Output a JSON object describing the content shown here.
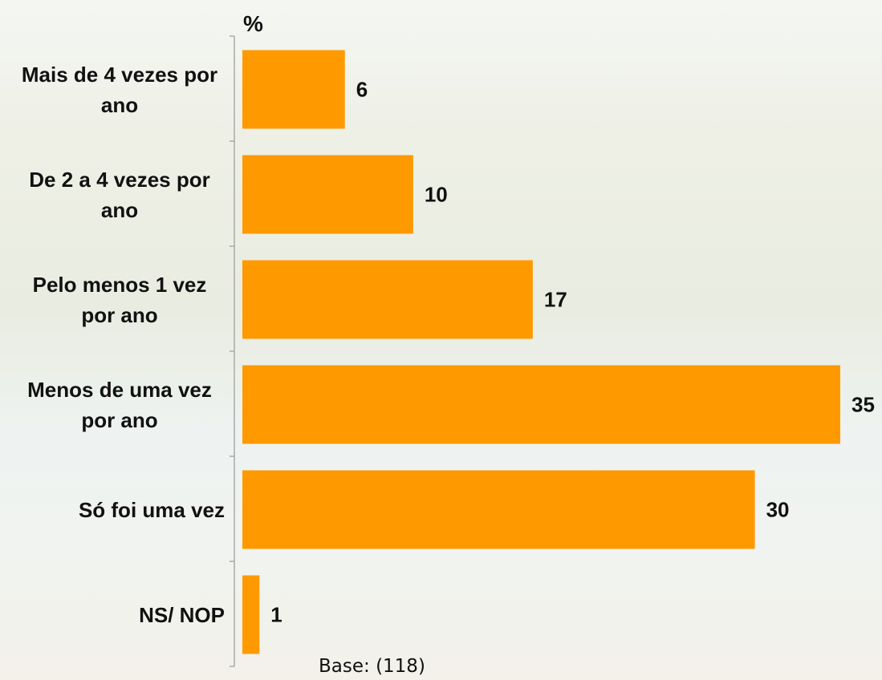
{
  "chart_data": {
    "type": "bar",
    "orientation": "horizontal",
    "x_label": "%",
    "categories": [
      "Mais de 4 vezes por ano",
      "De 2 a 4 vezes por ano",
      "Pelo menos 1 vez por ano",
      "Menos de uma vez por ano",
      "Só foi uma vez",
      "NS/ NOP"
    ],
    "values": [
      6,
      10,
      17,
      35,
      30,
      1
    ],
    "color": "#ff9900",
    "annotation": "Base: (118)"
  }
}
